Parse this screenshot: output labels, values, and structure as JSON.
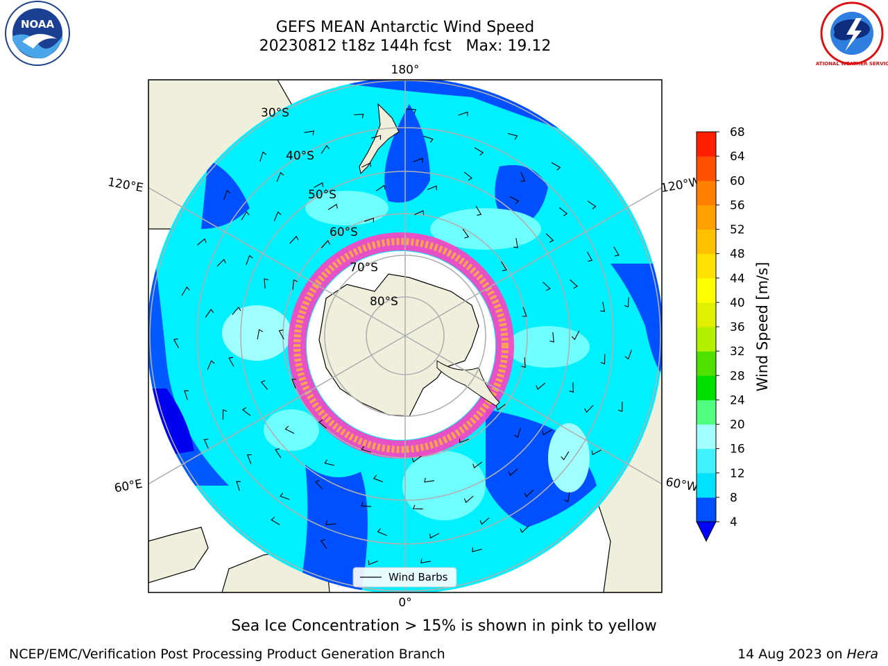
{
  "header": {
    "title": "GEFS MEAN Antarctic Wind Speed",
    "subtitle": "20230812 t18z 144h fcst   Max: 19.12"
  },
  "logos": {
    "left": "noara-logo",
    "right": "national-weather-service-logo",
    "left_text": "NOAA",
    "right_text": "NATIONAL WEATHER SERVICE"
  },
  "map": {
    "projection": "south-polar-stereographic",
    "longitude_labels": {
      "top": "180°",
      "bottom": "0°",
      "upper_left": "120°E",
      "upper_right": "120°W",
      "lower_left": "60°E",
      "lower_right": "60°W"
    },
    "latitude_labels": [
      "30°S",
      "40°S",
      "50°S",
      "60°S",
      "70°S",
      "80°S"
    ],
    "legend_label": "Wind Barbs"
  },
  "colorbar": {
    "label": "Wind Speed [m/s]",
    "ticks": [
      "4",
      "8",
      "12",
      "16",
      "20",
      "24",
      "28",
      "32",
      "36",
      "40",
      "44",
      "48",
      "52",
      "56",
      "60",
      "64",
      "68"
    ],
    "colors": [
      "#0050ff",
      "#00e0ff",
      "#40f0ff",
      "#a0ffff",
      "#50ff80",
      "#00e000",
      "#50e000",
      "#b0f000",
      "#e0f000",
      "#ffff00",
      "#ffe000",
      "#ffc000",
      "#ffa000",
      "#ff8000",
      "#ff5000",
      "#ff2000"
    ],
    "extend_color": "#0000ff"
  },
  "caption": "Sea Ice Concentration > 15% is shown in pink to yellow",
  "footer": {
    "left": "NCEP/EMC/Verification Post Processing Product Generation Branch",
    "date": "14 Aug 2023 on ",
    "machine": "Hera"
  }
}
